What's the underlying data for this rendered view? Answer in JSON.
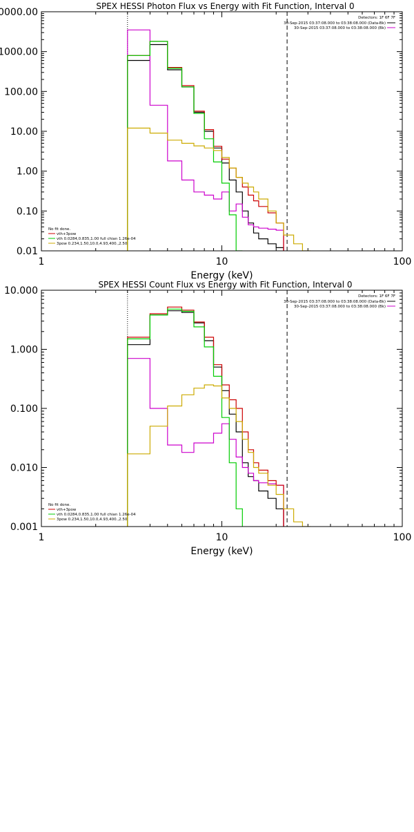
{
  "chart_data": [
    {
      "type": "line",
      "title": "SPEX HESSI Photon Flux vs Energy with Fit Function, Interval 0",
      "xlabel": "Energy (keV)",
      "ylabel": "",
      "xscale": "log",
      "yscale": "log",
      "xlim": [
        1,
        100
      ],
      "ylim": [
        0.01,
        10000
      ],
      "xticks": [
        1,
        10,
        100
      ],
      "xtick_labels": [
        "1",
        "10",
        "100"
      ],
      "yticks": [
        0.01,
        0.1,
        1,
        10,
        100,
        1000,
        10000
      ],
      "ytick_labels": [
        "0.01",
        "0.10",
        "1.00",
        "10.00",
        "100.00",
        "1000.00",
        "10000.00"
      ],
      "vlines": [
        {
          "x": 3,
          "style": "dotted",
          "color": "#000000"
        },
        {
          "x": 23,
          "style": "dashed",
          "color": "#000000"
        }
      ],
      "legend_top": {
        "placement": "top-right",
        "header": "Detectors: 1F 6F 7F",
        "entries": [
          {
            "text": "30-Sep-2015 03:37:08.000 to 03:38:08.000 (Data-Bk)",
            "color": "#000000"
          },
          {
            "text": "30-Sep-2015 03:37:08.000 to 03:38:08.000 (Bk)",
            "color": "#cc00cc"
          }
        ]
      },
      "legend_bottom": {
        "placement": "bottom-left",
        "header": "No fit done.",
        "entries": [
          {
            "text": "vth+3pow",
            "color": "#cc0000"
          },
          {
            "text": "vth 0.0284,0.835,1.00  full chian 1.26e-04",
            "color": "#00cc00"
          },
          {
            "text": "3pow 0.234,1.50,10.0,4.93,400.,2.50",
            "color": "#ccaa00"
          }
        ]
      },
      "bin_edges": [
        3,
        4,
        5,
        6,
        7,
        8,
        9,
        10,
        11,
        12,
        13,
        14,
        15,
        16,
        18,
        20,
        22,
        25,
        28,
        31,
        34
      ],
      "series": [
        {
          "id": "data-bk",
          "color": "#000000",
          "values": [
            600,
            1500,
            350,
            130,
            30,
            10,
            3.8,
            1.6,
            0.6,
            0.3,
            0.1,
            0.05,
            0.028,
            0.02,
            0.015,
            0.012,
            null,
            null,
            null,
            null
          ]
        },
        {
          "id": "bk",
          "color": "#cc00cc",
          "values": [
            3500,
            45,
            1.8,
            0.6,
            0.3,
            0.25,
            0.2,
            0.3,
            0.1,
            0.15,
            0.07,
            0.045,
            0.04,
            0.037,
            0.035,
            0.033,
            null,
            null,
            null,
            null
          ]
        },
        {
          "id": "vth-3pow",
          "color": "#cc0000",
          "values": [
            800,
            1800,
            400,
            140,
            32,
            11,
            4.2,
            2,
            1.2,
            0.7,
            0.4,
            0.25,
            0.18,
            0.13,
            0.09,
            0.05,
            null,
            null,
            null,
            null
          ]
        },
        {
          "id": "vth",
          "color": "#00cc00",
          "values": [
            800,
            1800,
            380,
            130,
            28,
            6.5,
            1.7,
            0.5,
            0.08,
            0.01,
            null,
            null,
            null,
            null,
            null,
            null,
            null,
            null,
            null,
            null
          ]
        },
        {
          "id": "3pow",
          "color": "#ccaa00",
          "values": [
            12,
            9,
            6,
            5,
            4.3,
            3.8,
            3.3,
            2.2,
            1.2,
            0.7,
            0.5,
            0.4,
            0.3,
            0.2,
            0.1,
            0.05,
            0.025,
            0.015,
            0.01,
            null
          ]
        }
      ]
    },
    {
      "type": "line",
      "title": "SPEX HESSI Count Flux vs Energy with Fit Function, Interval 0",
      "xlabel": "Energy (keV)",
      "ylabel": "",
      "xscale": "log",
      "yscale": "log",
      "xlim": [
        1,
        100
      ],
      "ylim": [
        0.001,
        10
      ],
      "xticks": [
        1,
        10,
        100
      ],
      "xtick_labels": [
        "1",
        "10",
        "100"
      ],
      "yticks": [
        0.001,
        0.01,
        0.1,
        1,
        10
      ],
      "ytick_labels": [
        "0.001",
        "0.010",
        "0.100",
        "1.000",
        "10.000"
      ],
      "vlines": [
        {
          "x": 3,
          "style": "dotted",
          "color": "#000000"
        },
        {
          "x": 23,
          "style": "dashed",
          "color": "#000000"
        }
      ],
      "legend_top": {
        "placement": "top-right",
        "header": "Detectors: 1F 6F 7F",
        "entries": [
          {
            "text": "30-Sep-2015 03:37:08.000 to 03:38:08.000 (Data-Bk)",
            "color": "#000000"
          },
          {
            "text": "30-Sep-2015 03:37:08.000 to 03:38:08.000 (Bk)",
            "color": "#cc00cc"
          }
        ]
      },
      "legend_bottom": {
        "placement": "bottom-left",
        "header": "No fit done.",
        "entries": [
          {
            "text": "vth+3pow",
            "color": "#cc0000"
          },
          {
            "text": "vth 0.0284,0.835,1.00  full chian 1.26e-04",
            "color": "#00cc00"
          },
          {
            "text": "3pow 0.234,1.50,10.0,4.93,400.,2.50",
            "color": "#ccaa00"
          }
        ]
      },
      "bin_edges": [
        3,
        4,
        5,
        6,
        7,
        8,
        9,
        10,
        11,
        12,
        13,
        14,
        15,
        16,
        18,
        20,
        22,
        25,
        28,
        31,
        34
      ],
      "series": [
        {
          "id": "data-bk",
          "color": "#000000",
          "values": [
            1.2,
            3.8,
            4.5,
            4.2,
            2.8,
            1.4,
            0.5,
            0.2,
            0.08,
            0.04,
            0.012,
            0.007,
            0.006,
            0.004,
            0.003,
            0.002,
            null,
            null,
            null,
            null
          ]
        },
        {
          "id": "bk",
          "color": "#cc00cc",
          "values": [
            0.7,
            0.1,
            0.024,
            0.018,
            0.026,
            0.026,
            0.038,
            0.055,
            0.03,
            0.015,
            0.01,
            0.008,
            0.006,
            0.0055,
            0.0053,
            0.005,
            null,
            null,
            null,
            null
          ]
        },
        {
          "id": "vth-3pow",
          "color": "#cc0000",
          "values": [
            1.6,
            4.0,
            5.2,
            4.6,
            2.9,
            1.6,
            0.55,
            0.25,
            0.14,
            0.1,
            0.04,
            0.02,
            0.012,
            0.009,
            0.006,
            0.005,
            null,
            null,
            null,
            null
          ]
        },
        {
          "id": "vth",
          "color": "#00cc00",
          "values": [
            1.5,
            3.8,
            4.8,
            4.4,
            2.4,
            1.1,
            0.35,
            0.07,
            0.012,
            0.002,
            null,
            null,
            null,
            null,
            null,
            null,
            null,
            null,
            null,
            null
          ]
        },
        {
          "id": "3pow",
          "color": "#ccaa00",
          "values": [
            0.017,
            0.05,
            0.11,
            0.17,
            0.22,
            0.25,
            0.24,
            0.15,
            0.1,
            0.06,
            0.03,
            0.018,
            0.01,
            0.008,
            0.005,
            0.0035,
            0.002,
            0.0012,
            0.0008,
            null
          ]
        }
      ]
    }
  ]
}
